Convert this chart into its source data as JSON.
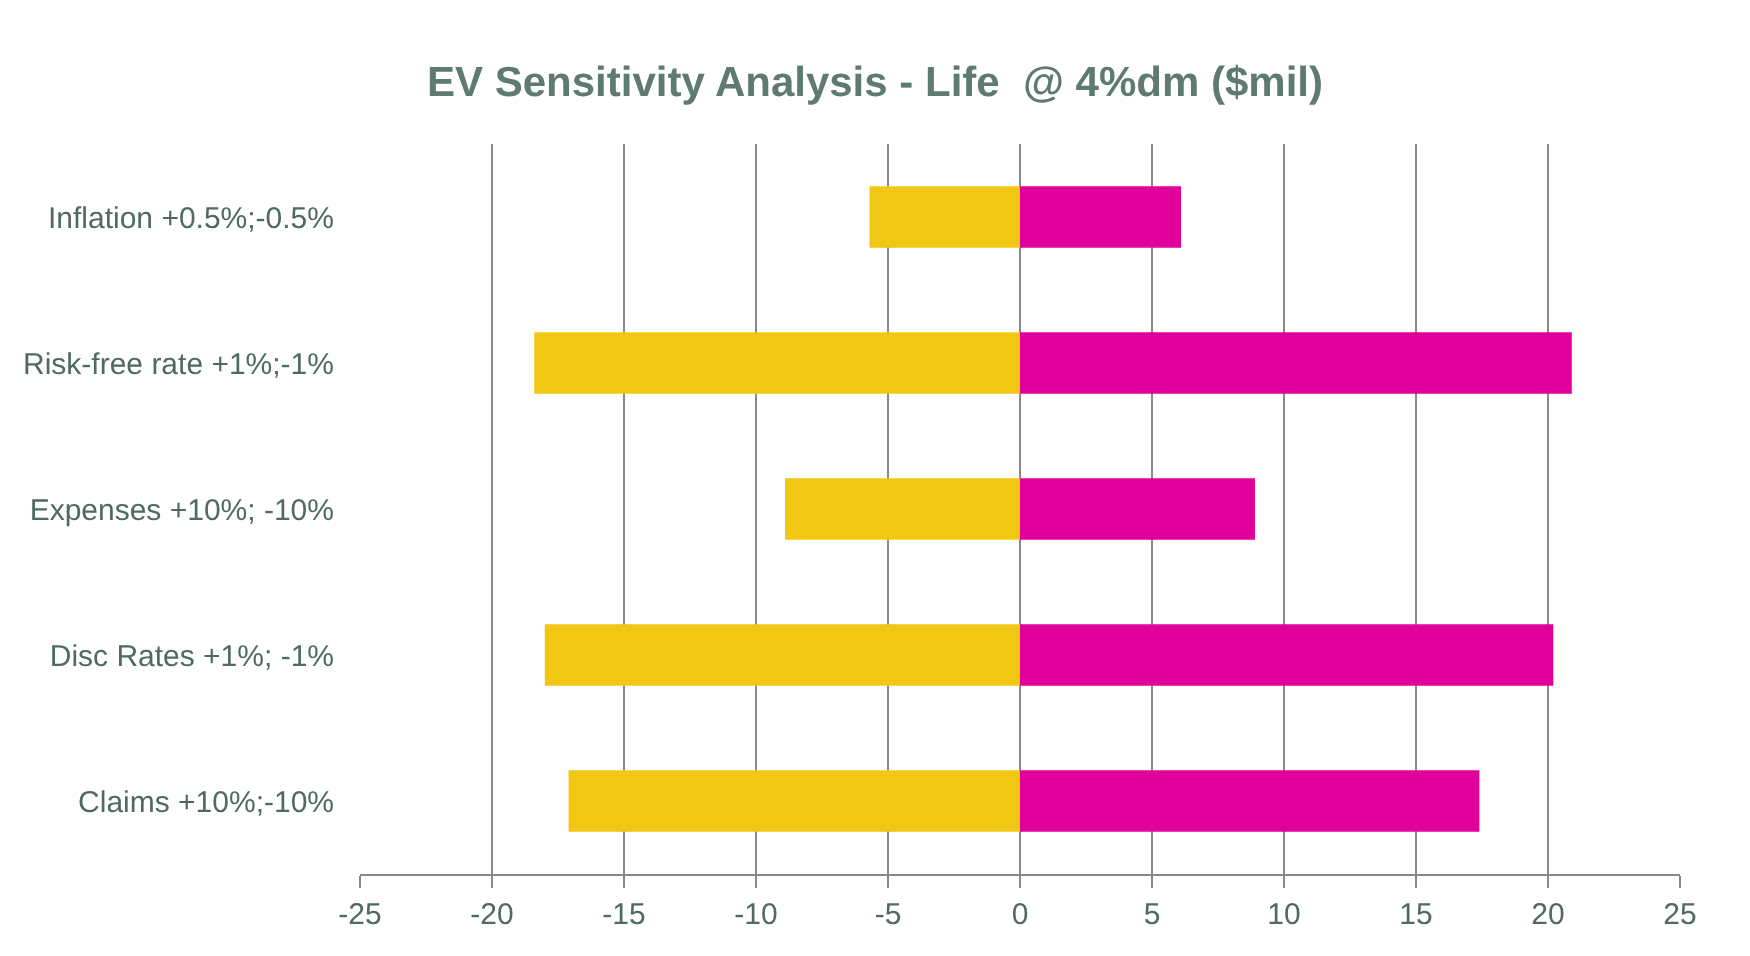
{
  "chart_data": {
    "type": "bar",
    "title": "EV Sensitivity Analysis - Life  @ 4%dm ($mil)",
    "orientation": "horizontal",
    "stacked": true,
    "categories": [
      "Inflation +0.5%;-0.5%",
      "Risk-free rate +1%;-1%",
      "Expenses +10%; -10%",
      "Disc Rates +1%; -1%",
      "Claims +10%;-10%"
    ],
    "series": [
      {
        "color": "#f2c714",
        "values": [
          -5.7,
          -18.4,
          -8.9,
          -18.0,
          -17.1
        ]
      },
      {
        "color": "#e2009a",
        "values": [
          6.1,
          20.9,
          8.9,
          20.2,
          17.4
        ]
      }
    ],
    "xlim": [
      -25,
      25
    ],
    "xticks": [
      -25,
      -20,
      -15,
      -10,
      -5,
      0,
      5,
      10,
      15,
      20,
      25
    ],
    "grid": "x"
  }
}
